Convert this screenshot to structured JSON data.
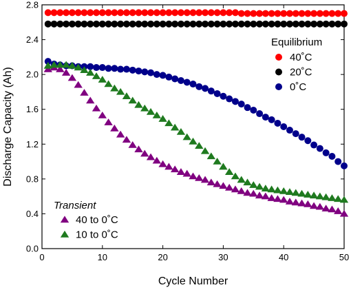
{
  "chart_data": {
    "type": "scatter",
    "xlabel": "Cycle Number",
    "ylabel": "Discharge Capacity (Ah)",
    "xlim": [
      0,
      50
    ],
    "ylim": [
      0,
      2.8
    ],
    "xticks": [
      0,
      10,
      20,
      30,
      40,
      50
    ],
    "yticks": [
      0.0,
      0.4,
      0.8,
      1.2,
      1.6,
      2.0,
      2.4,
      2.8
    ],
    "ytick_labels": [
      "0.0",
      "0.4",
      "0.8",
      "1.2",
      "1.6",
      "2.0",
      "2.4",
      "2.8"
    ],
    "grid": false,
    "legend_groups": [
      {
        "title": "Equilibrium",
        "title_style": "normal",
        "placement": "top-right",
        "entries": [
          {
            "label": "40˚C",
            "series": 0
          },
          {
            "label": "20˚C",
            "series": 1
          },
          {
            "label": "0˚C",
            "series": 2
          }
        ]
      },
      {
        "title": "Transient",
        "title_style": "italic",
        "placement": "bottom-left",
        "entries": [
          {
            "label": "40 to 0˚C",
            "series": 3
          },
          {
            "label": "10 to 0˚C",
            "series": 4
          }
        ]
      }
    ],
    "series": [
      {
        "name": "40˚C",
        "marker": "circle",
        "color": "#ff0000",
        "x": [
          1,
          2,
          3,
          4,
          5,
          6,
          7,
          8,
          9,
          10,
          11,
          12,
          13,
          14,
          15,
          16,
          17,
          18,
          19,
          20,
          21,
          22,
          23,
          24,
          25,
          26,
          27,
          28,
          29,
          30,
          31,
          32,
          33,
          34,
          35,
          36,
          37,
          38,
          39,
          40,
          41,
          42,
          43,
          44,
          45,
          46,
          47,
          48,
          49,
          50
        ],
        "y": [
          2.71,
          2.71,
          2.71,
          2.71,
          2.71,
          2.71,
          2.71,
          2.71,
          2.71,
          2.71,
          2.71,
          2.71,
          2.71,
          2.71,
          2.71,
          2.71,
          2.71,
          2.71,
          2.71,
          2.71,
          2.71,
          2.71,
          2.71,
          2.71,
          2.71,
          2.71,
          2.71,
          2.71,
          2.71,
          2.71,
          2.71,
          2.71,
          2.7,
          2.7,
          2.7,
          2.7,
          2.7,
          2.7,
          2.7,
          2.7,
          2.7,
          2.7,
          2.7,
          2.7,
          2.7,
          2.7,
          2.7,
          2.7,
          2.7,
          2.7
        ]
      },
      {
        "name": "20˚C",
        "marker": "circle",
        "color": "#000000",
        "x": [
          1,
          2,
          3,
          4,
          5,
          6,
          7,
          8,
          9,
          10,
          11,
          12,
          13,
          14,
          15,
          16,
          17,
          18,
          19,
          20,
          21,
          22,
          23,
          24,
          25,
          26,
          27,
          28,
          29,
          30,
          31,
          32,
          33,
          34,
          35,
          36,
          37,
          38,
          39,
          40,
          41,
          42,
          43,
          44,
          45,
          46,
          47,
          48,
          49,
          50
        ],
        "y": [
          2.58,
          2.58,
          2.58,
          2.58,
          2.58,
          2.58,
          2.58,
          2.58,
          2.58,
          2.58,
          2.58,
          2.58,
          2.58,
          2.58,
          2.58,
          2.58,
          2.58,
          2.58,
          2.58,
          2.58,
          2.58,
          2.58,
          2.58,
          2.58,
          2.58,
          2.58,
          2.58,
          2.58,
          2.58,
          2.58,
          2.58,
          2.58,
          2.58,
          2.58,
          2.58,
          2.58,
          2.58,
          2.58,
          2.58,
          2.58,
          2.58,
          2.58,
          2.58,
          2.58,
          2.58,
          2.58,
          2.58,
          2.58,
          2.58,
          2.58
        ]
      },
      {
        "name": "0˚C",
        "marker": "circle",
        "color": "#00008b",
        "x": [
          1,
          2,
          3,
          4,
          5,
          6,
          7,
          8,
          9,
          10,
          11,
          12,
          13,
          14,
          15,
          16,
          17,
          18,
          19,
          20,
          21,
          22,
          23,
          24,
          25,
          26,
          27,
          28,
          29,
          30,
          31,
          32,
          33,
          34,
          35,
          36,
          37,
          38,
          39,
          40,
          41,
          42,
          43,
          44,
          45,
          46,
          47,
          48,
          49,
          50
        ],
        "y": [
          2.15,
          2.12,
          2.11,
          2.1,
          2.1,
          2.09,
          2.09,
          2.09,
          2.08,
          2.08,
          2.07,
          2.07,
          2.06,
          2.06,
          2.05,
          2.04,
          2.03,
          2.02,
          2.0,
          1.99,
          1.97,
          1.95,
          1.93,
          1.91,
          1.89,
          1.86,
          1.84,
          1.81,
          1.78,
          1.75,
          1.72,
          1.69,
          1.66,
          1.62,
          1.59,
          1.55,
          1.51,
          1.48,
          1.44,
          1.4,
          1.36,
          1.32,
          1.28,
          1.24,
          1.19,
          1.15,
          1.1,
          1.06,
          1.0,
          0.95
        ]
      },
      {
        "name": "40 to 0˚C",
        "marker": "triangle",
        "color": "#800080",
        "x": [
          1,
          2,
          3,
          4,
          5,
          6,
          7,
          8,
          9,
          10,
          11,
          12,
          13,
          14,
          15,
          16,
          17,
          18,
          19,
          20,
          21,
          22,
          23,
          24,
          25,
          26,
          27,
          28,
          29,
          30,
          31,
          32,
          33,
          34,
          35,
          36,
          37,
          38,
          39,
          40,
          41,
          42,
          43,
          44,
          45,
          46,
          47,
          48,
          49,
          50
        ],
        "y": [
          2.06,
          2.08,
          2.06,
          2.02,
          1.96,
          1.88,
          1.79,
          1.7,
          1.61,
          1.53,
          1.45,
          1.38,
          1.31,
          1.25,
          1.19,
          1.14,
          1.09,
          1.05,
          1.01,
          0.97,
          0.94,
          0.91,
          0.88,
          0.86,
          0.83,
          0.81,
          0.79,
          0.76,
          0.74,
          0.72,
          0.7,
          0.68,
          0.66,
          0.64,
          0.63,
          0.61,
          0.6,
          0.58,
          0.57,
          0.56,
          0.54,
          0.53,
          0.52,
          0.51,
          0.49,
          0.48,
          0.46,
          0.45,
          0.43,
          0.4
        ]
      },
      {
        "name": "10 to 0˚C",
        "marker": "triangle",
        "color": "#1f7a1f",
        "x": [
          1,
          2,
          3,
          4,
          5,
          6,
          7,
          8,
          9,
          10,
          11,
          12,
          13,
          14,
          15,
          16,
          17,
          18,
          19,
          20,
          21,
          22,
          23,
          24,
          25,
          26,
          27,
          28,
          29,
          30,
          31,
          32,
          33,
          34,
          35,
          36,
          37,
          38,
          39,
          40,
          41,
          42,
          43,
          44,
          45,
          46,
          47,
          48,
          49,
          50
        ],
        "y": [
          2.1,
          2.11,
          2.11,
          2.11,
          2.1,
          2.08,
          2.05,
          2.02,
          1.98,
          1.94,
          1.89,
          1.84,
          1.8,
          1.75,
          1.7,
          1.65,
          1.61,
          1.57,
          1.53,
          1.49,
          1.44,
          1.39,
          1.34,
          1.28,
          1.23,
          1.18,
          1.12,
          1.06,
          1.0,
          0.94,
          0.88,
          0.83,
          0.79,
          0.76,
          0.73,
          0.71,
          0.69,
          0.68,
          0.67,
          0.66,
          0.65,
          0.64,
          0.63,
          0.62,
          0.61,
          0.6,
          0.59,
          0.58,
          0.57,
          0.56
        ]
      }
    ]
  }
}
